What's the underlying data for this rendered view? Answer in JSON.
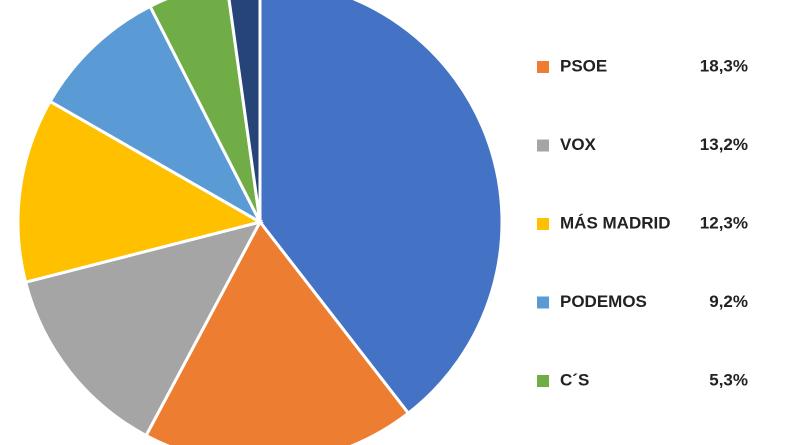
{
  "chart_data": {
    "type": "pie",
    "categories": [
      null,
      "PSOE",
      "VOX",
      "MÁS MADRID",
      "PODEMOS",
      "C´S",
      null
    ],
    "values": [
      39.5,
      18.3,
      13.2,
      12.3,
      9.2,
      5.3,
      2.2
    ],
    "value_labels": [
      null,
      "18,3%",
      "13,2%",
      "12,3%",
      "9,2%",
      "5,3%",
      null
    ],
    "colors": [
      "#4472c4",
      "#ed7d31",
      "#a5a5a5",
      "#ffc000",
      "#5b9bd5",
      "#70ad47",
      "#264478"
    ]
  }
}
